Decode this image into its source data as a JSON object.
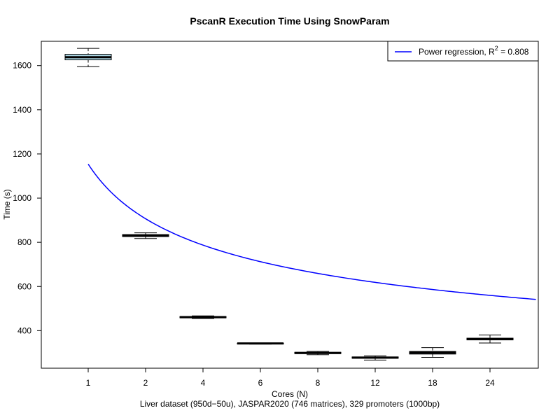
{
  "chart_data": {
    "type": "box",
    "title": "PscanR Execution Time Using SnowParam",
    "xlabel": "Cores (N)",
    "subtitle": "Liver dataset (950d−50u), JASPAR2020 (746 matrices), 329 promoters (1000bp)",
    "ylabel": "Time (s)",
    "categories": [
      "1",
      "2",
      "4",
      "6",
      "8",
      "12",
      "18",
      "24"
    ],
    "yticks": [
      400,
      600,
      800,
      1000,
      1200,
      1400,
      1600
    ],
    "ylim": [
      230,
      1710
    ],
    "box_fill": "#add8e6",
    "boxes": [
      {
        "category": "1",
        "min": 1595,
        "q1": 1626,
        "median": 1638,
        "q3": 1651,
        "max": 1678
      },
      {
        "category": "2",
        "min": 817,
        "q1": 826,
        "median": 830,
        "q3": 835,
        "max": 843
      },
      {
        "category": "4",
        "min": 455,
        "q1": 458,
        "median": 461,
        "q3": 464,
        "max": 467
      },
      {
        "category": "6",
        "min": 339,
        "q1": 340,
        "median": 342,
        "q3": 343,
        "max": 344
      },
      {
        "category": "8",
        "min": 291,
        "q1": 296,
        "median": 299,
        "q3": 302,
        "max": 306
      },
      {
        "category": "12",
        "min": 267,
        "q1": 275,
        "median": 278,
        "q3": 281,
        "max": 286
      },
      {
        "category": "18",
        "min": 279,
        "q1": 294,
        "median": 300,
        "q3": 306,
        "max": 323
      },
      {
        "category": "24",
        "min": 344,
        "q1": 358,
        "median": 362,
        "q3": 366,
        "max": 380
      }
    ],
    "regression": {
      "label_prefix": "Power regression,  R",
      "label_sup": "2",
      "label_suffix": " = 0.808",
      "color": "#0000ff",
      "coefficient": 1154,
      "exponent": -0.348,
      "x_start": 1,
      "x_end": 8.8
    },
    "legend_position": "top-right",
    "grid": false
  }
}
